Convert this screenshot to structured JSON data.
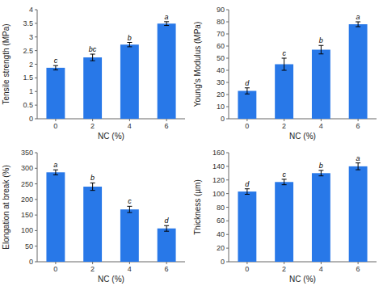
{
  "chart_data": [
    {
      "type": "bar",
      "categories": [
        0,
        2,
        4,
        6
      ],
      "values": [
        1.87,
        2.25,
        2.72,
        3.49
      ],
      "errors": [
        0.08,
        0.12,
        0.08,
        0.07
      ],
      "xlabel": "NC (%)",
      "ylabel": "Tensile strength (MPa)",
      "ylim": [
        0,
        4
      ],
      "yticks": [
        0,
        0.5,
        1.0,
        1.5,
        2.0,
        2.5,
        3.0,
        3.5,
        4.0
      ],
      "annotations": [
        "c",
        "bc",
        "b",
        "a"
      ],
      "color": "#2878E8"
    },
    {
      "type": "bar",
      "categories": [
        0,
        2,
        4,
        6
      ],
      "values": [
        23,
        45,
        57,
        78
      ],
      "errors": [
        2.5,
        5.0,
        3.5,
        2.0
      ],
      "xlabel": "NC (%)",
      "ylabel": "Young's Modulus (MPa)",
      "ylim": [
        0,
        90
      ],
      "yticks": [
        0,
        10,
        20,
        30,
        40,
        50,
        60,
        70,
        80,
        90
      ],
      "annotations": [
        "d",
        "c",
        "b",
        "a"
      ],
      "color": "#2878E8"
    },
    {
      "type": "bar",
      "categories": [
        0,
        2,
        4,
        6
      ],
      "values": [
        287,
        241,
        168,
        107
      ],
      "errors": [
        8,
        12,
        10,
        9
      ],
      "xlabel": "NC (%)",
      "ylabel": "Elongation at break (%)",
      "ylim": [
        0,
        350
      ],
      "yticks": [
        0,
        50,
        100,
        150,
        200,
        250,
        300,
        350
      ],
      "annotations": [
        "a",
        "b",
        "c",
        "d"
      ],
      "color": "#2878E8"
    },
    {
      "type": "bar",
      "categories": [
        0,
        2,
        4,
        6
      ],
      "values": [
        103,
        117,
        130,
        140
      ],
      "errors": [
        4,
        4,
        4,
        5
      ],
      "xlabel": "NC (%)",
      "ylabel": "Thickness (µm)",
      "ylim": [
        0,
        160
      ],
      "yticks": [
        0,
        20,
        40,
        60,
        80,
        100,
        120,
        140,
        160
      ],
      "annotations": [
        "d",
        "c",
        "b",
        "a"
      ],
      "color": "#2878E8"
    }
  ]
}
